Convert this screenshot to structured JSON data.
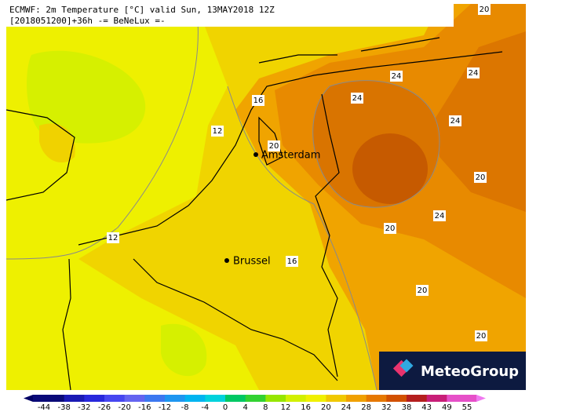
{
  "header": {
    "line1": "ECMWF: 2m Temperature [°C] valid Sun, 13MAY2018 12Z",
    "line2": "[2018051200]+36h  -= BeNeLux =-"
  },
  "cities": [
    "Amsterdam",
    "Brussel"
  ],
  "contour_labels": [
    20,
    24,
    24,
    16,
    24,
    12,
    24,
    20,
    20,
    24,
    20,
    12,
    16,
    20,
    20
  ],
  "logo": "MeteoGroup",
  "colorbar": {
    "ticks": [
      -44,
      -38,
      -32,
      -26,
      -20,
      -16,
      -12,
      -8,
      -4,
      0,
      4,
      8,
      12,
      16,
      20,
      24,
      28,
      32,
      38,
      43,
      49,
      55
    ],
    "colors": [
      "#0a0a78",
      "#1a1ab4",
      "#2828dc",
      "#4646f0",
      "#6464f0",
      "#3c78f0",
      "#1e96f0",
      "#00b4f0",
      "#00d2dc",
      "#00c864",
      "#32d232",
      "#96e600",
      "#d2f000",
      "#f0f000",
      "#f0c800",
      "#f0a000",
      "#e67800",
      "#d25000",
      "#b41e1e",
      "#c81e78",
      "#e650c8"
    ],
    "low_color": "#000064",
    "high_color": "#f078f0"
  }
}
